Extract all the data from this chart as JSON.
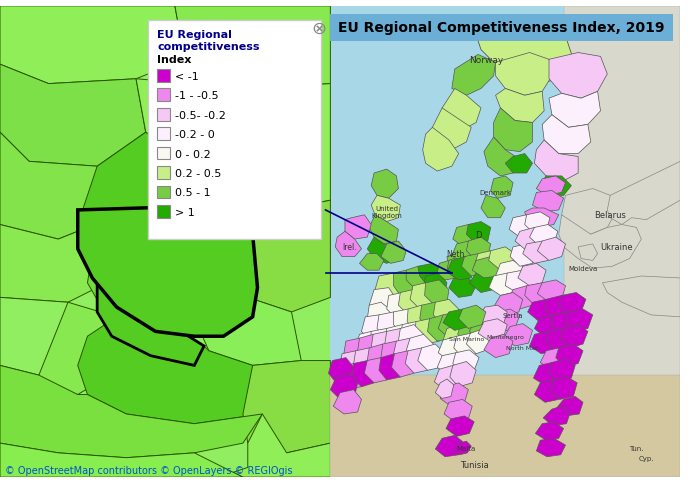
{
  "title": "EU Regional Competitiveness Index, 2019",
  "title_bg_color": "#6BAED6",
  "title_text_color": "#000000",
  "legend_title_color": "#00008B",
  "legend_items": [
    {
      "label": "< -1",
      "color": "#CC00CC"
    },
    {
      "label": "-1 - -0.5",
      "color": "#EE88EE"
    },
    {
      "label": "-0.5- -0.2",
      "color": "#F5C8F5"
    },
    {
      "label": "-0.2 - 0",
      "color": "#FCF0FC"
    },
    {
      "label": "0 - 0.2",
      "color": "#F8F8F0"
    },
    {
      "label": "0.2 - 0.5",
      "color": "#C8EE88"
    },
    {
      "label": "0.5 - 1",
      "color": "#78CC44"
    },
    {
      "label": "> 1",
      "color": "#22AA00"
    }
  ],
  "sea_color": "#A8D8E8",
  "land_offmap": "#D8D8CC",
  "left_bg": "#90EE60",
  "footer_text": "© OpenStreetMap contributors © OpenLayers © REGIOgis",
  "footer_color": "#0055CC",
  "figsize": [
    7.0,
    4.85
  ],
  "dpi": 100
}
